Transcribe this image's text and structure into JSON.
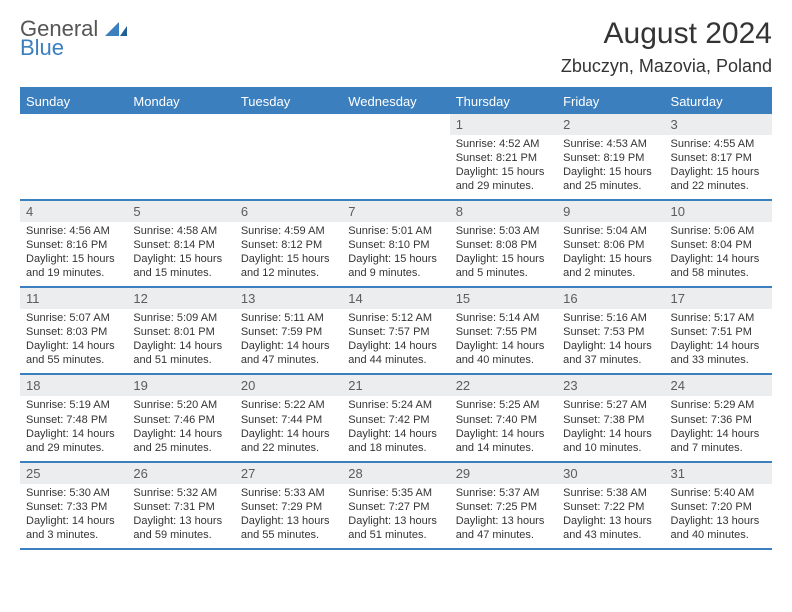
{
  "brand": {
    "general": "General",
    "blue": "Blue"
  },
  "header": {
    "month_title": "August 2024",
    "location": "Zbuczyn, Mazovia, Poland"
  },
  "colors": {
    "accent": "#3b7fbf",
    "daynum_bg": "#ecedee",
    "text": "#343434",
    "bg": "#ffffff"
  },
  "weekdays": [
    "Sunday",
    "Monday",
    "Tuesday",
    "Wednesday",
    "Thursday",
    "Friday",
    "Saturday"
  ],
  "weeks": [
    [
      {
        "day": "",
        "sunrise": "",
        "sunset": "",
        "daylight": ""
      },
      {
        "day": "",
        "sunrise": "",
        "sunset": "",
        "daylight": ""
      },
      {
        "day": "",
        "sunrise": "",
        "sunset": "",
        "daylight": ""
      },
      {
        "day": "",
        "sunrise": "",
        "sunset": "",
        "daylight": ""
      },
      {
        "day": "1",
        "sunrise": "Sunrise: 4:52 AM",
        "sunset": "Sunset: 8:21 PM",
        "daylight": "Daylight: 15 hours and 29 minutes."
      },
      {
        "day": "2",
        "sunrise": "Sunrise: 4:53 AM",
        "sunset": "Sunset: 8:19 PM",
        "daylight": "Daylight: 15 hours and 25 minutes."
      },
      {
        "day": "3",
        "sunrise": "Sunrise: 4:55 AM",
        "sunset": "Sunset: 8:17 PM",
        "daylight": "Daylight: 15 hours and 22 minutes."
      }
    ],
    [
      {
        "day": "4",
        "sunrise": "Sunrise: 4:56 AM",
        "sunset": "Sunset: 8:16 PM",
        "daylight": "Daylight: 15 hours and 19 minutes."
      },
      {
        "day": "5",
        "sunrise": "Sunrise: 4:58 AM",
        "sunset": "Sunset: 8:14 PM",
        "daylight": "Daylight: 15 hours and 15 minutes."
      },
      {
        "day": "6",
        "sunrise": "Sunrise: 4:59 AM",
        "sunset": "Sunset: 8:12 PM",
        "daylight": "Daylight: 15 hours and 12 minutes."
      },
      {
        "day": "7",
        "sunrise": "Sunrise: 5:01 AM",
        "sunset": "Sunset: 8:10 PM",
        "daylight": "Daylight: 15 hours and 9 minutes."
      },
      {
        "day": "8",
        "sunrise": "Sunrise: 5:03 AM",
        "sunset": "Sunset: 8:08 PM",
        "daylight": "Daylight: 15 hours and 5 minutes."
      },
      {
        "day": "9",
        "sunrise": "Sunrise: 5:04 AM",
        "sunset": "Sunset: 8:06 PM",
        "daylight": "Daylight: 15 hours and 2 minutes."
      },
      {
        "day": "10",
        "sunrise": "Sunrise: 5:06 AM",
        "sunset": "Sunset: 8:04 PM",
        "daylight": "Daylight: 14 hours and 58 minutes."
      }
    ],
    [
      {
        "day": "11",
        "sunrise": "Sunrise: 5:07 AM",
        "sunset": "Sunset: 8:03 PM",
        "daylight": "Daylight: 14 hours and 55 minutes."
      },
      {
        "day": "12",
        "sunrise": "Sunrise: 5:09 AM",
        "sunset": "Sunset: 8:01 PM",
        "daylight": "Daylight: 14 hours and 51 minutes."
      },
      {
        "day": "13",
        "sunrise": "Sunrise: 5:11 AM",
        "sunset": "Sunset: 7:59 PM",
        "daylight": "Daylight: 14 hours and 47 minutes."
      },
      {
        "day": "14",
        "sunrise": "Sunrise: 5:12 AM",
        "sunset": "Sunset: 7:57 PM",
        "daylight": "Daylight: 14 hours and 44 minutes."
      },
      {
        "day": "15",
        "sunrise": "Sunrise: 5:14 AM",
        "sunset": "Sunset: 7:55 PM",
        "daylight": "Daylight: 14 hours and 40 minutes."
      },
      {
        "day": "16",
        "sunrise": "Sunrise: 5:16 AM",
        "sunset": "Sunset: 7:53 PM",
        "daylight": "Daylight: 14 hours and 37 minutes."
      },
      {
        "day": "17",
        "sunrise": "Sunrise: 5:17 AM",
        "sunset": "Sunset: 7:51 PM",
        "daylight": "Daylight: 14 hours and 33 minutes."
      }
    ],
    [
      {
        "day": "18",
        "sunrise": "Sunrise: 5:19 AM",
        "sunset": "Sunset: 7:48 PM",
        "daylight": "Daylight: 14 hours and 29 minutes."
      },
      {
        "day": "19",
        "sunrise": "Sunrise: 5:20 AM",
        "sunset": "Sunset: 7:46 PM",
        "daylight": "Daylight: 14 hours and 25 minutes."
      },
      {
        "day": "20",
        "sunrise": "Sunrise: 5:22 AM",
        "sunset": "Sunset: 7:44 PM",
        "daylight": "Daylight: 14 hours and 22 minutes."
      },
      {
        "day": "21",
        "sunrise": "Sunrise: 5:24 AM",
        "sunset": "Sunset: 7:42 PM",
        "daylight": "Daylight: 14 hours and 18 minutes."
      },
      {
        "day": "22",
        "sunrise": "Sunrise: 5:25 AM",
        "sunset": "Sunset: 7:40 PM",
        "daylight": "Daylight: 14 hours and 14 minutes."
      },
      {
        "day": "23",
        "sunrise": "Sunrise: 5:27 AM",
        "sunset": "Sunset: 7:38 PM",
        "daylight": "Daylight: 14 hours and 10 minutes."
      },
      {
        "day": "24",
        "sunrise": "Sunrise: 5:29 AM",
        "sunset": "Sunset: 7:36 PM",
        "daylight": "Daylight: 14 hours and 7 minutes."
      }
    ],
    [
      {
        "day": "25",
        "sunrise": "Sunrise: 5:30 AM",
        "sunset": "Sunset: 7:33 PM",
        "daylight": "Daylight: 14 hours and 3 minutes."
      },
      {
        "day": "26",
        "sunrise": "Sunrise: 5:32 AM",
        "sunset": "Sunset: 7:31 PM",
        "daylight": "Daylight: 13 hours and 59 minutes."
      },
      {
        "day": "27",
        "sunrise": "Sunrise: 5:33 AM",
        "sunset": "Sunset: 7:29 PM",
        "daylight": "Daylight: 13 hours and 55 minutes."
      },
      {
        "day": "28",
        "sunrise": "Sunrise: 5:35 AM",
        "sunset": "Sunset: 7:27 PM",
        "daylight": "Daylight: 13 hours and 51 minutes."
      },
      {
        "day": "29",
        "sunrise": "Sunrise: 5:37 AM",
        "sunset": "Sunset: 7:25 PM",
        "daylight": "Daylight: 13 hours and 47 minutes."
      },
      {
        "day": "30",
        "sunrise": "Sunrise: 5:38 AM",
        "sunset": "Sunset: 7:22 PM",
        "daylight": "Daylight: 13 hours and 43 minutes."
      },
      {
        "day": "31",
        "sunrise": "Sunrise: 5:40 AM",
        "sunset": "Sunset: 7:20 PM",
        "daylight": "Daylight: 13 hours and 40 minutes."
      }
    ]
  ]
}
